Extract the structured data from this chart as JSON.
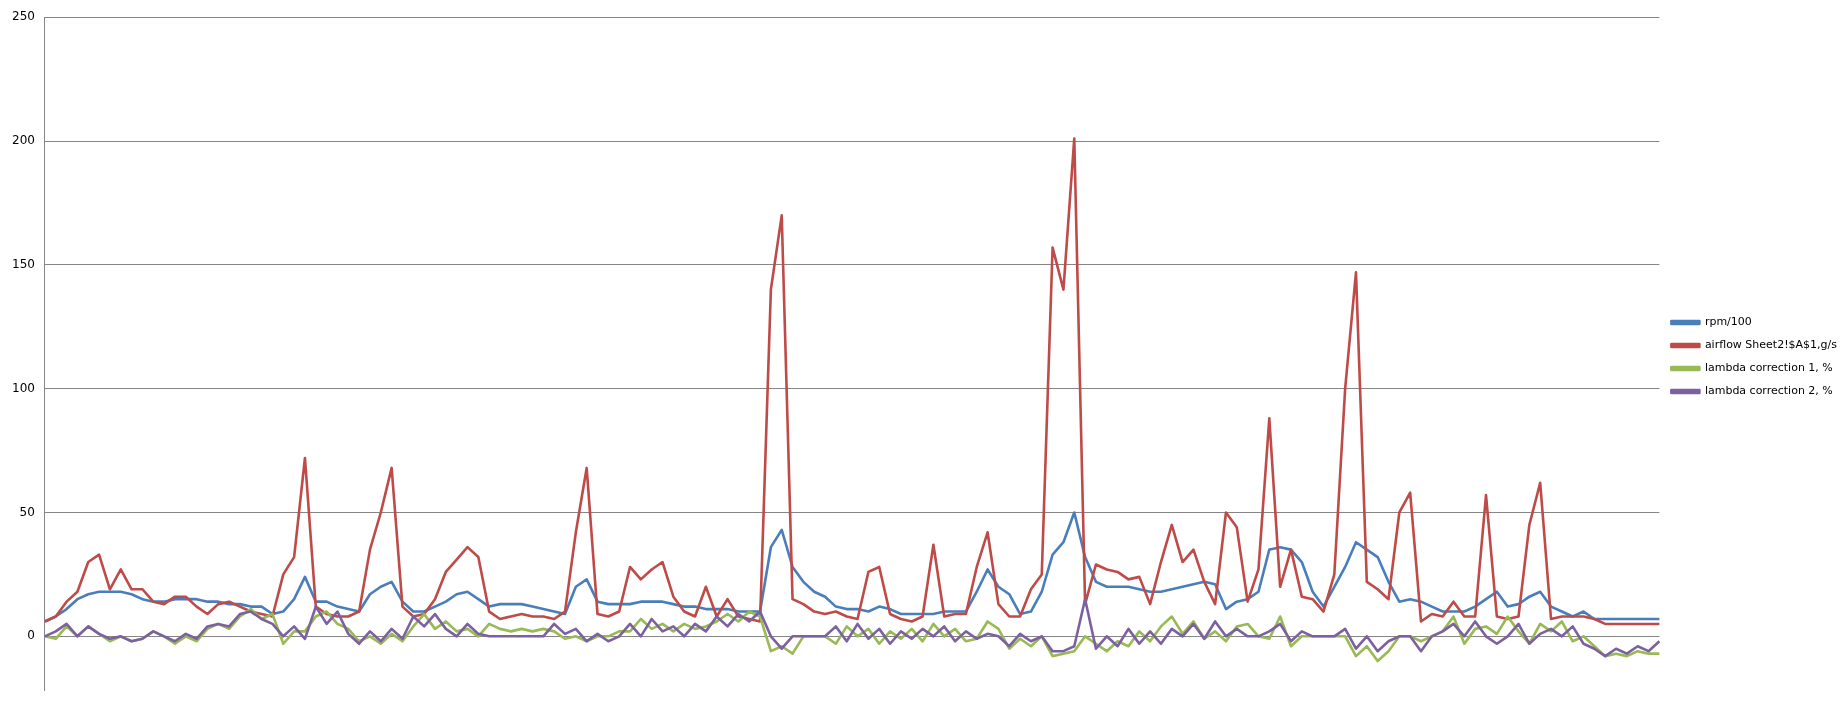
{
  "chart_data": {
    "type": "line",
    "categories": [
      null,
      null,
      null,
      null,
      null,
      null,
      null,
      null,
      null,
      null,
      null,
      null,
      null,
      null,
      null,
      null,
      null,
      null,
      null,
      null,
      null,
      null,
      null,
      null,
      null,
      null,
      null,
      null,
      null,
      null,
      null,
      null,
      null,
      null,
      null,
      null,
      null,
      null,
      null,
      null,
      null,
      null,
      null,
      null,
      null,
      null,
      null,
      null,
      null,
      null,
      null,
      null,
      null,
      null,
      null,
      null,
      null,
      null,
      null,
      null,
      null,
      null,
      null,
      null,
      null,
      null,
      null,
      null,
      null,
      null,
      null,
      null,
      null,
      null,
      null,
      null,
      null,
      null,
      null,
      null,
      null,
      null,
      null,
      null,
      null,
      null,
      null,
      null,
      null,
      null,
      null,
      null,
      null,
      null,
      null,
      null,
      null,
      null,
      null,
      null,
      null,
      null,
      null,
      null,
      null,
      null,
      null,
      null,
      null,
      null,
      null,
      null,
      null,
      null,
      null,
      null,
      null,
      null,
      null,
      null,
      null,
      null,
      null,
      null,
      null,
      null,
      null,
      null,
      null,
      null,
      null,
      null,
      null,
      null,
      null,
      null,
      null,
      null,
      null,
      null,
      null,
      null,
      null,
      null,
      null,
      null,
      null,
      null,
      null,
      null
    ],
    "series": [
      {
        "name": "rpm/100",
        "color": "#4a7ebb",
        "values": [
          6,
          8,
          11,
          15,
          17,
          18,
          18,
          18,
          17,
          15,
          14,
          14,
          15,
          15,
          15,
          14,
          14,
          13,
          13,
          12,
          12,
          9,
          10,
          15,
          24,
          14,
          14,
          12,
          11,
          10,
          17,
          20,
          22,
          14,
          10,
          10,
          12,
          14,
          17,
          18,
          15,
          12,
          13,
          13,
          13,
          12,
          11,
          10,
          9,
          20,
          23,
          14,
          13,
          13,
          13,
          14,
          14,
          14,
          13,
          12,
          12,
          11,
          11,
          11,
          10,
          10,
          10,
          36,
          43,
          28,
          22,
          18,
          16,
          12,
          11,
          11,
          10,
          12,
          11,
          9,
          9,
          9,
          9,
          10,
          10,
          10,
          18,
          27,
          20,
          17,
          9,
          10,
          18,
          33,
          38,
          50,
          32,
          22,
          20,
          20,
          20,
          19,
          18,
          18,
          19,
          20,
          21,
          22,
          21,
          11,
          14,
          15,
          18,
          35,
          36,
          35,
          30,
          18,
          12,
          20,
          28,
          38,
          35,
          32,
          22,
          14,
          15,
          14,
          12,
          10,
          10,
          10,
          12,
          15,
          18,
          12,
          13,
          16,
          18,
          12,
          10,
          8,
          10,
          7,
          7,
          7,
          7,
          7,
          7,
          7
        ]
      },
      {
        "name": "airflow Sheet2!$A$1,g/s",
        "color": "#be4b48",
        "values": [
          6,
          8,
          14,
          18,
          30,
          33,
          19,
          27,
          19,
          19,
          14,
          13,
          16,
          16,
          12,
          9,
          13,
          14,
          12,
          10,
          9,
          8,
          25,
          32,
          72,
          12,
          9,
          8,
          8,
          10,
          35,
          50,
          68,
          12,
          8,
          9,
          15,
          26,
          31,
          36,
          32,
          10,
          7,
          8,
          9,
          8,
          8,
          7,
          10,
          42,
          68,
          9,
          8,
          10,
          28,
          23,
          27,
          30,
          16,
          10,
          8,
          20,
          8,
          15,
          8,
          7,
          6,
          140,
          170,
          15,
          13,
          10,
          9,
          10,
          8,
          7,
          26,
          28,
          9,
          7,
          6,
          8,
          37,
          8,
          9,
          9,
          28,
          42,
          13,
          8,
          8,
          19,
          25,
          157,
          140,
          201,
          13,
          29,
          27,
          26,
          23,
          24,
          13,
          30,
          45,
          30,
          35,
          22,
          13,
          50,
          44,
          14,
          27,
          88,
          20,
          35,
          16,
          15,
          10,
          25,
          100,
          147,
          22,
          19,
          15,
          50,
          58,
          6,
          9,
          8,
          14,
          8,
          8,
          57,
          8,
          7,
          8,
          45,
          62,
          7,
          8,
          8,
          8,
          7,
          5,
          5,
          5,
          5,
          5,
          5
        ]
      },
      {
        "name": "lambda correction 1, %",
        "color": "#98b954",
        "values": [
          0,
          -1,
          4,
          0,
          4,
          1,
          -2,
          0,
          -2,
          -1,
          2,
          0,
          -3,
          0,
          -2,
          3,
          5,
          3,
          8,
          11,
          7,
          9,
          -3,
          2,
          2,
          8,
          10,
          5,
          3,
          -2,
          0,
          -3,
          1,
          -2,
          4,
          9,
          3,
          6,
          2,
          3,
          0,
          5,
          3,
          2,
          3,
          2,
          3,
          2,
          -1,
          0,
          -2,
          0,
          0,
          2,
          2,
          7,
          3,
          5,
          2,
          5,
          3,
          4,
          6,
          9,
          6,
          10,
          8,
          -6,
          -4,
          -7,
          0,
          0,
          0,
          -3,
          4,
          0,
          3,
          -3,
          2,
          -1,
          3,
          -2,
          5,
          0,
          3,
          -2,
          -1,
          6,
          3,
          -5,
          -1,
          -4,
          0,
          -8,
          -7,
          -6,
          0,
          -3,
          -6,
          -2,
          -4,
          2,
          -2,
          4,
          8,
          1,
          6,
          -1,
          2,
          -2,
          4,
          5,
          0,
          -1,
          8,
          -4,
          0,
          0,
          0,
          0,
          0,
          -8,
          -4,
          -10,
          -6,
          0,
          0,
          -2,
          0,
          2,
          8,
          -3,
          3,
          4,
          1,
          8,
          2,
          -3,
          5,
          2,
          6,
          -2,
          0,
          -4,
          -8,
          -7,
          -8,
          -6,
          -7,
          -7
        ]
      },
      {
        "name": "lambda correction 2, %",
        "color": "#7d60a0",
        "values": [
          0,
          2,
          5,
          0,
          4,
          1,
          -1,
          0,
          -2,
          -1,
          2,
          0,
          -2,
          1,
          -1,
          4,
          5,
          4,
          9,
          10,
          7,
          5,
          0,
          4,
          -1,
          12,
          5,
          10,
          1,
          -3,
          2,
          -2,
          3,
          -1,
          8,
          4,
          9,
          3,
          0,
          5,
          1,
          0,
          0,
          0,
          0,
          0,
          0,
          5,
          1,
          3,
          -2,
          1,
          -2,
          0,
          5,
          0,
          7,
          2,
          4,
          0,
          5,
          2,
          8,
          4,
          9,
          6,
          10,
          0,
          -5,
          0,
          0,
          0,
          0,
          4,
          -2,
          5,
          -1,
          3,
          -3,
          2,
          -1,
          3,
          0,
          4,
          -2,
          2,
          -1,
          1,
          0,
          -4,
          1,
          -2,
          0,
          -6,
          -6,
          -4,
          15,
          -5,
          0,
          -4,
          3,
          -3,
          2,
          -3,
          3,
          0,
          5,
          -1,
          6,
          0,
          3,
          0,
          0,
          2,
          5,
          -2,
          2,
          0,
          0,
          0,
          3,
          -5,
          0,
          -6,
          -2,
          0,
          0,
          -6,
          0,
          2,
          5,
          0,
          6,
          0,
          -3,
          0,
          5,
          -3,
          1,
          3,
          0,
          4,
          -3,
          -5,
          -8,
          -5,
          -7,
          -4,
          -6,
          -2
        ]
      }
    ],
    "ylim": [
      -22,
      250
    ],
    "yticks": [
      0,
      50,
      100,
      150,
      200,
      250
    ],
    "grid": "y",
    "legend": "right",
    "tick_labels": "y",
    "marker": "none",
    "line_style": "solid"
  }
}
